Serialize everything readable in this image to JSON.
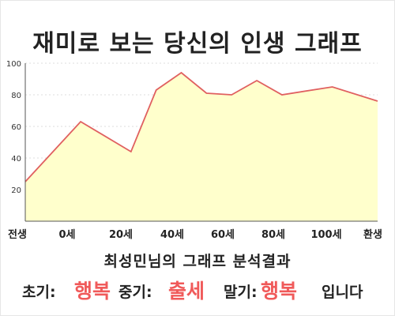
{
  "page": {
    "title": "재미로 보는 당신의 인생 그래프"
  },
  "result": {
    "subtitle": "최성민님의 그래프 분석결과",
    "early_label": "초기:",
    "early_value": "행복",
    "mid_label": "중기:",
    "mid_value": "출세",
    "late_label": "말기:",
    "late_value": "행복",
    "ending": "입니다"
  },
  "colors": {
    "fill": "#ffffcc",
    "line": "#e06060",
    "grid": "#dddddd",
    "emphasis": "#f05a5a"
  },
  "chart_data": {
    "type": "area",
    "title": "",
    "xlabel": "",
    "ylabel": "",
    "ylim": [
      0,
      100
    ],
    "yticks": [
      20,
      40,
      60,
      80,
      100
    ],
    "xticks": [
      "전생",
      "0세",
      "20세",
      "40세",
      "60세",
      "80세",
      "100세",
      "환생"
    ],
    "grid": true,
    "legend": "none",
    "series": [
      {
        "x": [
          -22,
          0,
          20,
          30,
          40,
          50,
          60,
          70,
          80,
          100,
          118
        ],
        "y": [
          25,
          63,
          44,
          83,
          94,
          81,
          80,
          89,
          80,
          85,
          76
        ]
      }
    ]
  }
}
